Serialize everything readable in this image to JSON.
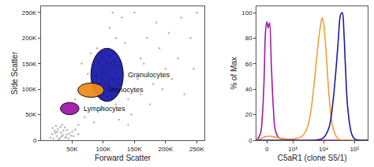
{
  "chart_data": [
    {
      "type": "scatter",
      "x_label": "Forward Scatter",
      "y_label": "Side Scatter",
      "xlim": [
        0,
        262144
      ],
      "ylim": [
        0,
        262144
      ],
      "xticks": [
        {
          "value": 50000,
          "label": "50K"
        },
        {
          "value": 100000,
          "label": "100K"
        },
        {
          "value": 150000,
          "label": "150K"
        },
        {
          "value": 200000,
          "label": "200K"
        },
        {
          "value": 250000,
          "label": "250K"
        }
      ],
      "yticks": [
        0,
        {
          "value": 50000,
          "label": "50K"
        },
        {
          "value": 100000,
          "label": "100K"
        },
        {
          "value": 150000,
          "label": "150K"
        },
        {
          "value": 200000,
          "label": "200K"
        },
        {
          "value": 250000,
          "label": "250K"
        }
      ],
      "grid": false,
      "series": [
        {
          "color": "#b3b3b3",
          "marker": "dot",
          "x": [
            15000,
            18000,
            20000,
            22000,
            25000,
            27000,
            30000,
            32000,
            35000,
            38000,
            40000,
            42000,
            45000,
            48000,
            50000,
            24000,
            28000,
            33000,
            36000,
            41000,
            19000,
            23000,
            31000,
            44000,
            52000,
            55000,
            60000,
            26000,
            34000,
            39000,
            60000,
            70000,
            85000,
            95000,
            120000,
            140000,
            160000,
            180000,
            200000,
            220000,
            240000,
            250000,
            65000,
            90000,
            110000,
            130000,
            150000,
            170000,
            190000,
            210000,
            230000,
            75000,
            100000,
            125000,
            145000,
            165000,
            185000,
            205000,
            55000,
            80000,
            135000,
            155000,
            175000,
            195000,
            115000,
            245000,
            225000,
            160000,
            140000,
            120000
          ],
          "values": [
            5000,
            12000,
            3000,
            18000,
            8000,
            22000,
            4000,
            15000,
            10000,
            25000,
            6000,
            20000,
            13000,
            9000,
            17000,
            28000,
            2000,
            7000,
            19000,
            11000,
            24000,
            14000,
            26000,
            3000,
            8000,
            21000,
            12000,
            16000,
            30000,
            5000,
            30000,
            45000,
            35000,
            60000,
            70000,
            80000,
            90000,
            110000,
            140000,
            160000,
            200000,
            250000,
            150000,
            180000,
            220000,
            240000,
            250000,
            200000,
            180000,
            120000,
            90000,
            130000,
            60000,
            40000,
            50000,
            150000,
            230000,
            210000,
            80000,
            170000,
            190000,
            120000,
            70000,
            100000,
            250000,
            140000,
            240000,
            160000,
            30000,
            200000
          ]
        },
        {
          "color": "#1c1ca8",
          "marker": "dot",
          "x": [
            106000,
            100000,
            112000,
            95000,
            118000,
            106000,
            98000,
            114000,
            90000,
            122000,
            104000,
            108000,
            96000,
            116000,
            102000,
            110000,
            94000,
            118000,
            106000,
            100000,
            112000,
            88000,
            124000,
            104000,
            108000,
            98000,
            114000,
            106000,
            92000,
            120000,
            102000,
            110000,
            106000,
            100000,
            112000,
            96000,
            116000
          ],
          "values": [
            128000,
            120000,
            136000,
            140000,
            118000,
            100000,
            160000,
            100000,
            128000,
            130000,
            150000,
            110000,
            110000,
            145000,
            170000,
            165000,
            150000,
            155000,
            85000,
            90000,
            88000,
            125000,
            120000,
            130000,
            140000,
            140000,
            120000,
            175000,
            110000,
            100000,
            95000,
            105000,
            115000,
            135000,
            150000,
            125000,
            170000
          ]
        }
      ],
      "gates": [
        {
          "label": "Granulocytes",
          "color": "#1c1ca8",
          "center": [
            106000,
            128000
          ],
          "radii": [
            26000,
            52000
          ]
        },
        {
          "label": "Monocytes",
          "color": "#f08c1e",
          "center": [
            80000,
            98000
          ],
          "radii": [
            21000,
            14000
          ]
        },
        {
          "label": "Lymphocytes",
          "color": "#a01aa8",
          "center": [
            46000,
            62000
          ],
          "radii": [
            15000,
            12000
          ]
        }
      ]
    },
    {
      "type": "line",
      "x_label": "C5aR1 (clone S5/1)",
      "y_label": "% of Max",
      "log": "x",
      "xlim": [
        -250,
        262144
      ],
      "ylim": [
        0,
        105
      ],
      "xticks": [
        0,
        {
          "value": 1000,
          "label": "10³"
        },
        {
          "value": 10000,
          "label": "10⁴"
        },
        {
          "value": 100000,
          "label": "10⁵"
        }
      ],
      "yticks": [
        0,
        20,
        40,
        60,
        80,
        100
      ],
      "grid": false,
      "series": [
        {
          "color": "#a01aa8",
          "x": [
            -250,
            -150,
            -100,
            -60,
            -30,
            0,
            30,
            60,
            100,
            150,
            200,
            300,
            500,
            1000,
            10000,
            262144
          ],
          "values": [
            0,
            5,
            20,
            50,
            85,
            93,
            88,
            92,
            60,
            25,
            8,
            2,
            1,
            0,
            0,
            0
          ]
        },
        {
          "color": "#f0a030",
          "x": [
            -250,
            0,
            100,
            500,
            1000,
            2000,
            3000,
            4000,
            5000,
            6000,
            7000,
            8000,
            9000,
            10000,
            12000,
            15000,
            20000,
            30000,
            100000,
            262144
          ],
          "values": [
            0,
            3,
            3,
            1,
            1,
            3,
            10,
            25,
            45,
            65,
            80,
            90,
            96,
            92,
            70,
            35,
            10,
            1,
            0,
            0
          ]
        },
        {
          "color": "#1c1c99",
          "x": [
            -250,
            1000,
            5000,
            10000,
            15000,
            20000,
            25000,
            30000,
            35000,
            40000,
            45000,
            50000,
            60000,
            80000,
            100000,
            262144
          ],
          "values": [
            0,
            0,
            0,
            2,
            10,
            30,
            55,
            80,
            98,
            100,
            85,
            60,
            25,
            5,
            1,
            0
          ]
        }
      ]
    }
  ]
}
